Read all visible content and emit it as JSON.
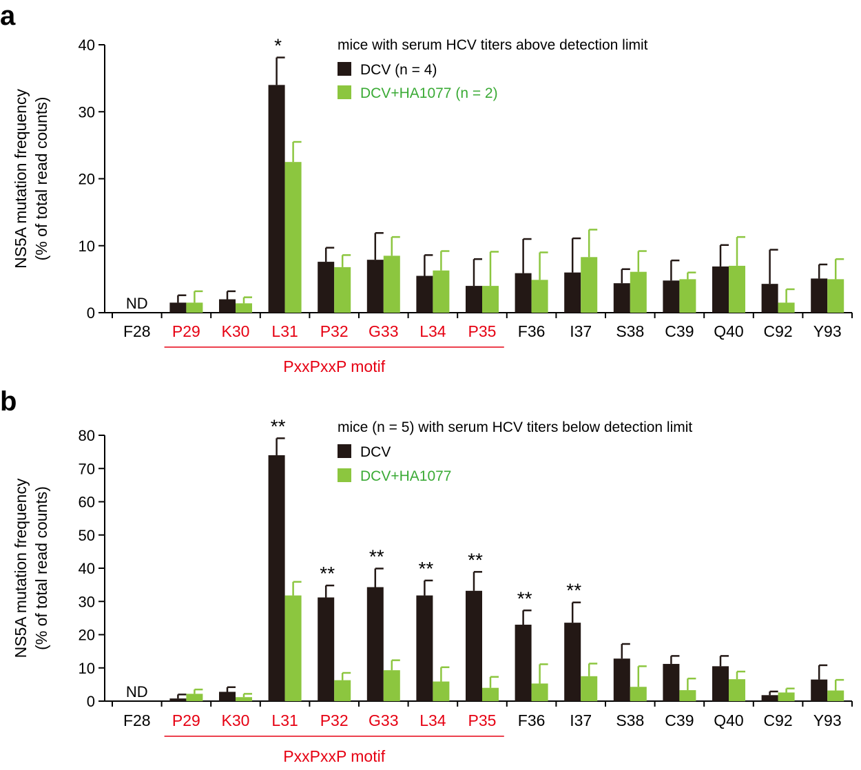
{
  "colors": {
    "dcv": "#231815",
    "ha": "#8cc63f",
    "ha_text": "#3aaa35",
    "motif": "#e60012",
    "axis": "#000000"
  },
  "chart_data": [
    {
      "type": "bar",
      "panel": "a",
      "ylabel_line1": "NS5A mutation frequency",
      "ylabel_line2": "(% of total read counts)",
      "ylim": [
        0,
        40
      ],
      "yticks": [
        0,
        10,
        20,
        30,
        40
      ],
      "legend_title": "mice with serum HCV titers above detection limit",
      "categories": [
        "F28",
        "P29",
        "K30",
        "L31",
        "P32",
        "G33",
        "L34",
        "P35",
        "F36",
        "I37",
        "S38",
        "C39",
        "Q40",
        "C92",
        "Y93"
      ],
      "highlighted": [
        "P29",
        "K30",
        "L31",
        "P32",
        "G33",
        "L34",
        "P35"
      ],
      "series": [
        {
          "name": "DCV",
          "legend_label": "DCV  (n = 4)",
          "values": [
            0,
            1.5,
            2.0,
            34.0,
            7.6,
            7.9,
            5.5,
            4.0,
            5.9,
            6.0,
            4.4,
            4.8,
            6.9,
            4.3,
            5.1
          ],
          "errors": [
            0,
            1.1,
            1.2,
            4.1,
            2.1,
            4.0,
            3.1,
            4.0,
            5.1,
            5.1,
            2.1,
            3.0,
            3.2,
            5.1,
            2.1
          ]
        },
        {
          "name": "DCV+HA1077",
          "legend_label": "DCV+HA1077 (n = 2)",
          "values": [
            0,
            1.5,
            1.4,
            22.5,
            6.8,
            8.5,
            6.3,
            4.0,
            4.9,
            8.3,
            6.1,
            5.0,
            7.0,
            1.5,
            5.0
          ],
          "errors": [
            0,
            1.7,
            0.9,
            3.0,
            1.8,
            2.8,
            2.9,
            5.1,
            4.1,
            4.1,
            3.1,
            1.0,
            4.3,
            2.0,
            3.0
          ]
        }
      ],
      "significance": [
        {
          "category": "L31",
          "label": "*"
        }
      ],
      "annotation_nd": {
        "category": "F28",
        "label": "ND"
      },
      "motif_label": "PxxPxxP motif"
    },
    {
      "type": "bar",
      "panel": "b",
      "ylabel_line1": "NS5A mutation frequency",
      "ylabel_line2": "(% of total read counts)",
      "ylim": [
        0,
        80
      ],
      "yticks": [
        0,
        10,
        20,
        30,
        40,
        50,
        60,
        70,
        80
      ],
      "legend_title": "mice (n = 5) with serum HCV titers below detection limit",
      "categories": [
        "F28",
        "P29",
        "K30",
        "L31",
        "P32",
        "G33",
        "L34",
        "P35",
        "F36",
        "I37",
        "S38",
        "C39",
        "Q40",
        "C92",
        "Y93"
      ],
      "highlighted": [
        "P29",
        "K30",
        "L31",
        "P32",
        "G33",
        "L34",
        "P35"
      ],
      "series": [
        {
          "name": "DCV",
          "legend_label": "DCV",
          "values": [
            0,
            0.8,
            2.8,
            74.0,
            31.2,
            34.3,
            31.8,
            33.2,
            23.0,
            23.6,
            12.8,
            11.2,
            10.5,
            1.8,
            6.5
          ],
          "errors": [
            0,
            1.2,
            1.4,
            5.1,
            3.6,
            5.6,
            4.5,
            5.7,
            4.3,
            6.1,
            4.4,
            2.4,
            3.1,
            1.1,
            4.3
          ]
        },
        {
          "name": "DCV+HA1077",
          "legend_label": "DCV+HA1077",
          "values": [
            0,
            2.2,
            1.2,
            31.8,
            6.3,
            9.3,
            5.9,
            4.0,
            5.3,
            7.5,
            4.3,
            3.3,
            6.6,
            2.6,
            3.2
          ],
          "errors": [
            0,
            1.3,
            1.0,
            4.1,
            2.2,
            3.0,
            4.3,
            3.3,
            5.8,
            3.8,
            6.2,
            3.5,
            2.3,
            1.2,
            3.2
          ]
        }
      ],
      "significance": [
        {
          "category": "L31",
          "label": "**"
        },
        {
          "category": "P32",
          "label": "**"
        },
        {
          "category": "G33",
          "label": "**"
        },
        {
          "category": "L34",
          "label": "**"
        },
        {
          "category": "P35",
          "label": "**"
        },
        {
          "category": "F36",
          "label": "**"
        },
        {
          "category": "I37",
          "label": "**"
        }
      ],
      "annotation_nd": {
        "category": "F28",
        "label": "ND"
      },
      "motif_label": "PxxPxxP motif"
    }
  ]
}
